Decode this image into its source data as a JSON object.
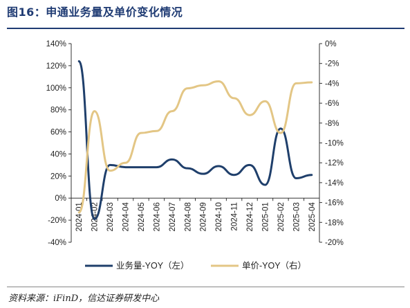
{
  "header": {
    "title": "图16：申通业务量及单价变化情况"
  },
  "footer": {
    "source": "资料来源：iFinD，信达证券研发中心"
  },
  "chart_data": {
    "type": "line",
    "x": [
      "2024-01",
      "2024-02",
      "2024-03",
      "2024-04",
      "2024-05",
      "2024-06",
      "2024-07",
      "2024-08",
      "2024-09",
      "2024-10",
      "2024-11",
      "2024-12",
      "2025-01",
      "2025-02",
      "2025-03",
      "2025-04"
    ],
    "left_axis": {
      "ylim": [
        -40,
        140
      ],
      "ticks": [
        -40,
        -20,
        0,
        20,
        40,
        60,
        80,
        100,
        120,
        140
      ],
      "tick_labels": [
        "-40%",
        "-20%",
        "0%",
        "20%",
        "40%",
        "60%",
        "80%",
        "100%",
        "120%",
        "140%"
      ]
    },
    "right_axis": {
      "ylim": [
        -20,
        0
      ],
      "ticks": [
        -20,
        -18,
        -16,
        -14,
        -12,
        -10,
        -8,
        -6,
        -4,
        -2,
        0
      ],
      "tick_labels": [
        "-20%",
        "-18%",
        "-16%",
        "-14%",
        "-12%",
        "-10%",
        "-8%",
        "-6%",
        "-4%",
        "-2%",
        "0%"
      ]
    },
    "series": [
      {
        "name": "业务量-YOY（左）",
        "axis": "left",
        "color": "#1f3f6b",
        "values": [
          124,
          -19,
          30,
          28,
          28,
          28,
          35,
          27,
          22,
          29,
          21,
          30,
          12,
          63,
          18,
          21
        ]
      },
      {
        "name": "单价-YOY（右）",
        "axis": "right",
        "color": "#e3c685",
        "values": [
          -17.0,
          -6.8,
          -12.8,
          -12.0,
          -9.0,
          -8.8,
          -6.8,
          -4.5,
          -4.2,
          -3.8,
          -5.5,
          -7.2,
          -5.8,
          -9.0,
          -4.0,
          -3.9
        ]
      }
    ],
    "legend_position": "bottom",
    "grid": false
  }
}
